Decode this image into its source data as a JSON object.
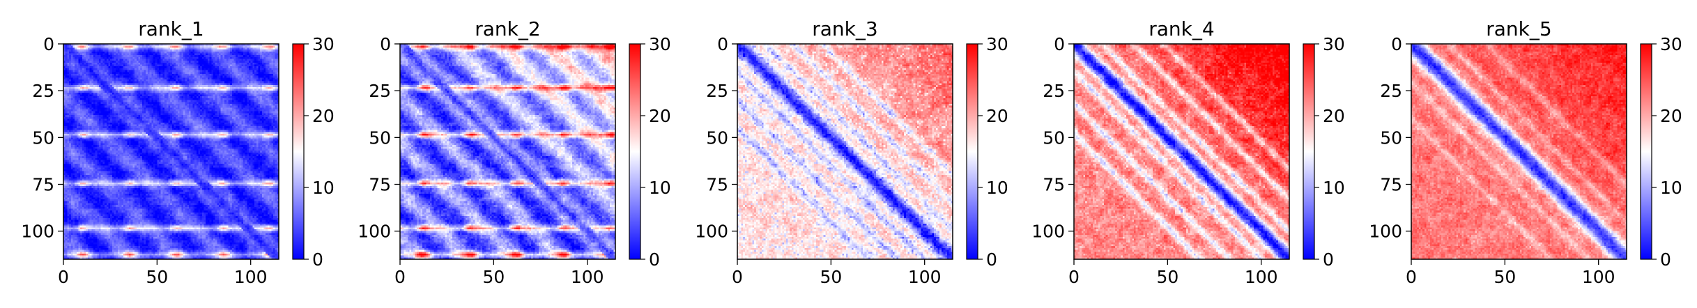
{
  "chart_data": [
    {
      "type": "heatmap",
      "title": "rank_1",
      "matrix_size": 115,
      "x_ticks": [
        0,
        50,
        100
      ],
      "y_ticks": [
        0,
        25,
        50,
        75,
        100
      ],
      "xlim": [
        0,
        115
      ],
      "ylim": [
        115,
        0
      ],
      "colorbar": {
        "range": [
          0,
          30
        ],
        "ticks": [
          0,
          10,
          20,
          30
        ],
        "colormap": "bwr"
      },
      "pattern": {
        "base": 3.5,
        "diag_depth": 3.5,
        "diag_width": 3,
        "band_amp": 3.0,
        "band_period": 25,
        "band_offset": 3,
        "blob_amp": 17,
        "blob_x_period": 25,
        "blob_x_offset": 10,
        "row_lines": [
          1,
          23,
          48,
          74,
          98,
          112
        ],
        "row_line_amp": 9,
        "noise": 2.5,
        "upper_right_boost": 0,
        "off_diag_low": [],
        "scatter": 0
      }
    },
    {
      "type": "heatmap",
      "title": "rank_2",
      "matrix_size": 115,
      "x_ticks": [
        0,
        50,
        100
      ],
      "y_ticks": [
        0,
        25,
        50,
        75,
        100
      ],
      "xlim": [
        0,
        115
      ],
      "ylim": [
        115,
        0
      ],
      "colorbar": {
        "range": [
          0,
          30
        ],
        "ticks": [
          0,
          10,
          20,
          30
        ],
        "colormap": "bwr"
      },
      "pattern": {
        "base": 6.5,
        "diag_depth": 6,
        "diag_width": 3,
        "band_amp": 4.5,
        "band_period": 25,
        "band_offset": 3,
        "blob_amp": 21,
        "blob_x_period": 25,
        "blob_x_offset": 12,
        "row_lines": [
          1,
          23,
          48,
          74,
          98,
          112
        ],
        "row_line_amp": 12,
        "noise": 3.5,
        "upper_right_boost": 5,
        "off_diag_low": [],
        "scatter": 0
      }
    },
    {
      "type": "heatmap",
      "title": "rank_3",
      "matrix_size": 115,
      "x_ticks": [
        0,
        50,
        100
      ],
      "y_ticks": [
        0,
        25,
        50,
        75,
        100
      ],
      "xlim": [
        0,
        115
      ],
      "ylim": [
        115,
        0
      ],
      "colorbar": {
        "range": [
          0,
          30
        ],
        "ticks": [
          0,
          10,
          20,
          30
        ],
        "colormap": "bwr"
      },
      "pattern": {
        "base": 17,
        "diag_depth": 15,
        "diag_width": 4,
        "band_amp": 0,
        "band_period": 25,
        "band_offset": 0,
        "blob_amp": 0,
        "blob_x_period": 25,
        "blob_x_offset": 0,
        "row_lines": [],
        "row_line_amp": 0,
        "noise": 3.5,
        "upper_right_boost": 4,
        "off_diag_low": [
          15,
          30,
          45
        ],
        "off_diag_depth": 7,
        "scatter": 0.5
      }
    },
    {
      "type": "heatmap",
      "title": "rank_4",
      "matrix_size": 115,
      "x_ticks": [
        0,
        50,
        100
      ],
      "y_ticks": [
        0,
        25,
        50,
        75,
        100
      ],
      "xlim": [
        0,
        115
      ],
      "ylim": [
        115,
        0
      ],
      "colorbar": {
        "range": [
          0,
          30
        ],
        "ticks": [
          0,
          10,
          20,
          30
        ],
        "colormap": "bwr"
      },
      "pattern": {
        "base": 22,
        "diag_depth": 21,
        "diag_width": 4,
        "band_amp": 0,
        "band_period": 25,
        "band_offset": 0,
        "blob_amp": 0,
        "blob_x_period": 25,
        "blob_x_offset": 0,
        "row_lines": [],
        "row_line_amp": 0,
        "noise": 3.5,
        "upper_right_boost": 5,
        "off_diag_low": [
          15,
          32,
          48
        ],
        "off_diag_depth": 10,
        "scatter": 0.3
      }
    },
    {
      "type": "heatmap",
      "title": "rank_5",
      "matrix_size": 115,
      "x_ticks": [
        0,
        50,
        100
      ],
      "y_ticks": [
        0,
        25,
        50,
        75,
        100
      ],
      "xlim": [
        0,
        115
      ],
      "ylim": [
        115,
        0
      ],
      "colorbar": {
        "range": [
          0,
          30
        ],
        "ticks": [
          0,
          10,
          20,
          30
        ],
        "colormap": "bwr"
      },
      "pattern": {
        "base": 23,
        "diag_depth": 20,
        "diag_width": 5,
        "band_amp": 0,
        "band_period": 25,
        "band_offset": 0,
        "blob_amp": 0,
        "blob_x_period": 25,
        "blob_x_offset": 0,
        "row_lines": [],
        "row_line_amp": 0,
        "noise": 3.0,
        "upper_right_boost": 3,
        "off_diag_low": [
          20,
          40
        ],
        "off_diag_depth": 5,
        "scatter": 0.2
      }
    }
  ]
}
